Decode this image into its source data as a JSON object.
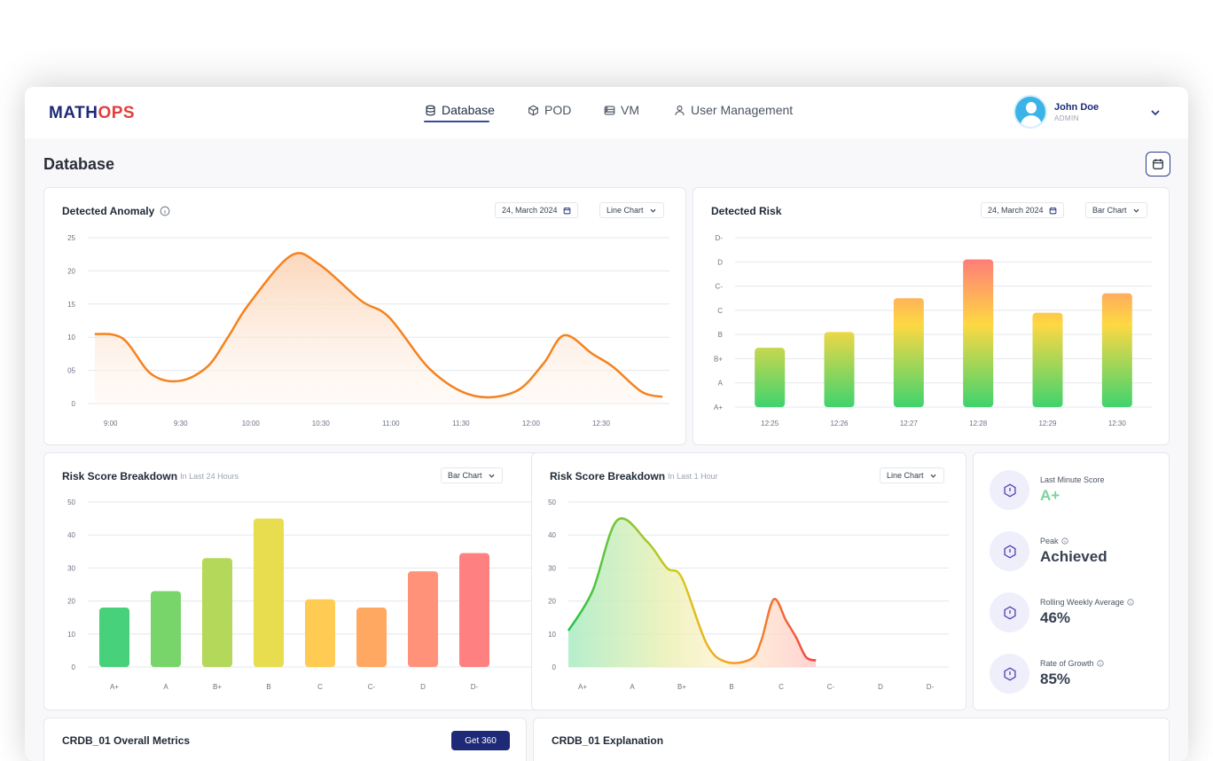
{
  "brand": {
    "logo_part1": "MATH",
    "logo_part2": "OPS",
    "logo_color1": "#1e2a78",
    "logo_color2": "#e53e3e"
  },
  "nav": {
    "items": [
      {
        "label": "Database",
        "icon": "database-icon",
        "active": true
      },
      {
        "label": "POD",
        "icon": "cube-icon",
        "active": false
      },
      {
        "label": "VM",
        "icon": "server-icon",
        "active": false
      },
      {
        "label": "User Management",
        "icon": "user-icon",
        "active": false
      }
    ]
  },
  "user": {
    "name": "John Doe",
    "role": "ADMIN"
  },
  "page": {
    "title": "Database"
  },
  "cards": {
    "anomaly": {
      "title": "Detected Anomaly",
      "date": "24, March 2024",
      "chart_type": "Line Chart"
    },
    "risk": {
      "title": "Detected Risk",
      "date": "24, March 2024",
      "chart_type": "Bar Chart"
    },
    "breakdown24": {
      "title": "Risk Score Breakdown",
      "subtitle": "In Last 24 Hours",
      "chart_type": "Bar Chart"
    },
    "breakdown1": {
      "title": "Risk Score Breakdown",
      "subtitle": "In Last 1 Hour",
      "chart_type": "Line Chart"
    },
    "overall": {
      "title": "CRDB_01 Overall Metrics",
      "button": "Get 360"
    },
    "explanation": {
      "title": "CRDB_01 Explanation"
    }
  },
  "stats": [
    {
      "label": "Last Minute Score",
      "value": "A+",
      "info": false,
      "highlight": true
    },
    {
      "label": "Peak",
      "value": "Achieved",
      "info": true,
      "highlight": false
    },
    {
      "label": "Rolling Weekly Average",
      "value": "46%",
      "info": true,
      "highlight": false
    },
    {
      "label": "Rate of Growth",
      "value": "85%",
      "info": true,
      "highlight": false
    }
  ],
  "chart_data": [
    {
      "id": "anomaly",
      "type": "line",
      "title": "Detected Anomaly",
      "x": [
        "9:00",
        "9:30",
        "10:00",
        "10:30",
        "11:00",
        "11:30",
        "12:00",
        "12:30"
      ],
      "y_ticks": [
        "0",
        "05",
        "10",
        "15",
        "20",
        "25"
      ],
      "ylim": [
        0,
        25
      ],
      "points": [
        [
          8.9,
          10.5
        ],
        [
          9.1,
          9.8
        ],
        [
          9.3,
          4.5
        ],
        [
          9.5,
          3.4
        ],
        [
          9.7,
          5.5
        ],
        [
          9.85,
          10
        ],
        [
          10.0,
          15
        ],
        [
          10.3,
          22.3
        ],
        [
          10.5,
          21
        ],
        [
          10.8,
          15.5
        ],
        [
          11.0,
          13
        ],
        [
          11.3,
          5
        ],
        [
          11.6,
          1.2
        ],
        [
          11.9,
          1.8
        ],
        [
          12.1,
          6
        ],
        [
          12.25,
          10.3
        ],
        [
          12.45,
          7.5
        ],
        [
          12.6,
          5.5
        ],
        [
          12.8,
          1.8
        ],
        [
          12.95,
          1
        ]
      ],
      "color": "#f5821f"
    },
    {
      "id": "risk",
      "type": "bar",
      "title": "Detected Risk",
      "categories": [
        "12:25",
        "12:26",
        "12:27",
        "12:28",
        "12:29",
        "12:30"
      ],
      "y_ticks": [
        "A+",
        "A",
        "B+",
        "B",
        "C",
        "C-",
        "D",
        "D-"
      ],
      "values": [
        2.45,
        3.1,
        4.5,
        6.1,
        3.9,
        4.7
      ],
      "ylim": [
        0,
        7
      ]
    },
    {
      "id": "breakdown24",
      "type": "bar",
      "title": "Risk Score Breakdown",
      "categories": [
        "A+",
        "A",
        "B+",
        "B",
        "C",
        "C-",
        "D",
        "D-"
      ],
      "values": [
        18,
        23,
        33,
        45,
        20.5,
        18,
        29,
        34.5
      ],
      "y_ticks": [
        "0",
        "10",
        "20",
        "30",
        "40",
        "50"
      ],
      "ylim": [
        0,
        50
      ],
      "colors": [
        "#46d17a",
        "#78d56a",
        "#b4d85a",
        "#e8dd4f",
        "#ffcb52",
        "#ffa862",
        "#ff9278",
        "#ff8080"
      ]
    },
    {
      "id": "breakdown1",
      "type": "line",
      "title": "Risk Score Breakdown",
      "categories": [
        "A+",
        "A",
        "B+",
        "B",
        "C",
        "C-",
        "D",
        "D-"
      ],
      "y_ticks": [
        "0",
        "10",
        "20",
        "30",
        "40",
        "50"
      ],
      "ylim": [
        0,
        50
      ],
      "points": [
        [
          -0.3,
          11
        ],
        [
          0.2,
          23
        ],
        [
          0.7,
          44.5
        ],
        [
          1.3,
          38
        ],
        [
          1.7,
          30
        ],
        [
          2.0,
          27
        ],
        [
          2.5,
          7
        ],
        [
          2.9,
          1.5
        ],
        [
          3.4,
          2.5
        ],
        [
          3.6,
          8
        ],
        [
          3.85,
          20.5
        ],
        [
          4.1,
          14
        ],
        [
          4.3,
          9
        ],
        [
          4.5,
          3
        ],
        [
          4.7,
          2
        ]
      ]
    }
  ]
}
